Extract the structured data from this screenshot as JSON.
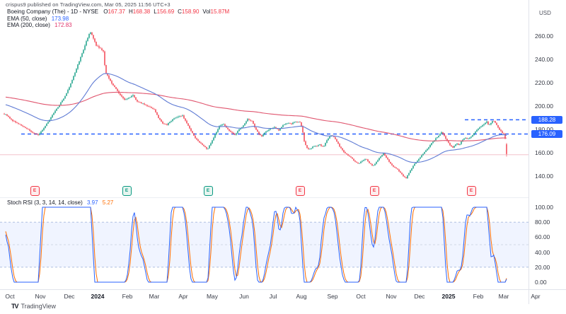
{
  "attribution": "crispus9 published on TradingView.com, Mar 05, 2025 11:56 UTC+3",
  "colors": {
    "up": "#089981",
    "down": "#f23645",
    "ema50": "#5f7bd4",
    "ema200": "#e0566f",
    "level_dashed": "#2962ff",
    "minor_line": "#f0b9c4",
    "stoch_k": "#2962ff",
    "stoch_d": "#ff6d00",
    "band_fill": "rgba(41,98,255,0.07)",
    "band_edge": "#a5b8dd",
    "band_mid": "#c6cede",
    "badge_bg": "#2962ff"
  },
  "main_legend": {
    "symbol": "Boeing Company (The)",
    "separator": "-",
    "interval": "1D",
    "exchange": "NYSE",
    "ohlc": [
      {
        "k": "O",
        "v": "167.37"
      },
      {
        "k": "H",
        "v": "168.38"
      },
      {
        "k": "L",
        "v": "156.69"
      },
      {
        "k": "C",
        "v": "158.90"
      },
      {
        "k": "Vol",
        "v": "15.87M"
      }
    ],
    "indicators": [
      {
        "label": "EMA (50, close)",
        "value": "173.98",
        "color": "#2962ff"
      },
      {
        "label": "EMA (200, close)",
        "value": "172.83",
        "color": "#e0356b"
      }
    ]
  },
  "price_axis": {
    "currency": "USD",
    "ticks": [
      "260.00",
      "240.00",
      "220.00",
      "200.00",
      "180.00",
      "160.00",
      "140.00"
    ],
    "badges": [
      {
        "text": "188.28",
        "price": 188.28
      },
      {
        "text": "176.09",
        "price": 176.09
      }
    ]
  },
  "stoch_axis": [
    "100.00",
    "80.00",
    "60.00",
    "40.00",
    "20.00",
    "0.00"
  ],
  "stoch_legend": {
    "title": "Stoch RSI",
    "params": "(3, 3, 14, 14, close)",
    "k_value": "3.97",
    "d_value": "5.27"
  },
  "time_axis": [
    {
      "label": "Oct",
      "x": 14
    },
    {
      "label": "Nov",
      "x": 57
    },
    {
      "label": "Dec",
      "x": 98
    },
    {
      "label": "2024",
      "x": 138,
      "bold": true
    },
    {
      "label": "Feb",
      "x": 180
    },
    {
      "label": "Mar",
      "x": 218
    },
    {
      "label": "Apr",
      "x": 259
    },
    {
      "label": "May",
      "x": 300
    },
    {
      "label": "Jun",
      "x": 345
    },
    {
      "label": "Jul",
      "x": 386
    },
    {
      "label": "Aug",
      "x": 426
    },
    {
      "label": "Sep",
      "x": 470
    },
    {
      "label": "Oct",
      "x": 510
    },
    {
      "label": "Nov",
      "x": 553
    },
    {
      "label": "Dec",
      "x": 593
    },
    {
      "label": "2025",
      "x": 634,
      "bold": true
    },
    {
      "label": "Feb",
      "x": 676
    },
    {
      "label": "Mar",
      "x": 712
    },
    {
      "label": "Apr",
      "x": 757
    }
  ],
  "earnings_markers": {
    "letter": "E",
    "items": [
      {
        "x": 48,
        "type": "red"
      },
      {
        "x": 178,
        "type": "green"
      },
      {
        "x": 293,
        "type": "green"
      },
      {
        "x": 423,
        "type": "red"
      },
      {
        "x": 528,
        "type": "red"
      },
      {
        "x": 665,
        "type": "red"
      }
    ]
  },
  "footer": {
    "logo": "TV",
    "text": "TradingView"
  },
  "chart_data": {
    "type": "candlestick",
    "symbol": "Boeing Company (The)",
    "interval": "1D",
    "exchange": "NYSE",
    "x_range": [
      "Oct 2023",
      "Apr 2025"
    ],
    "y_range_usd": [
      133,
      272
    ],
    "last_candle": {
      "o": 167.37,
      "h": 168.38,
      "l": 156.69,
      "c": 158.9,
      "vol": "15.87M"
    },
    "overlays": [
      {
        "name": "EMA 50",
        "last": 173.98
      },
      {
        "name": "EMA 200",
        "last": 172.83
      }
    ],
    "levels": {
      "dashed_lines": [
        {
          "price": 188.28,
          "x_start": 657
        },
        {
          "price": 176.09,
          "x_start": 30
        }
      ],
      "minor_support": 158.3
    },
    "stoch_rsi": {
      "params": [
        3,
        3,
        14,
        14
      ],
      "k_last": 3.97,
      "d_last": 5.27,
      "bands": {
        "upper": 80,
        "middle": 50,
        "lower": 20
      }
    },
    "price_path_anchors": [
      [
        -352,
        196
      ],
      [
        -300,
        203
      ],
      [
        -255,
        211
      ],
      [
        -215,
        224
      ],
      [
        -185,
        234
      ],
      [
        -155,
        229
      ],
      [
        -125,
        221
      ],
      [
        -95,
        213
      ],
      [
        -65,
        207
      ],
      [
        -35,
        199
      ],
      [
        -12,
        194
      ],
      [
        8,
        193
      ],
      [
        18,
        188
      ],
      [
        28,
        184
      ],
      [
        38,
        180
      ],
      [
        48,
        177
      ],
      [
        54,
        176.3
      ],
      [
        62,
        182
      ],
      [
        72,
        190
      ],
      [
        82,
        199
      ],
      [
        92,
        209
      ],
      [
        102,
        223
      ],
      [
        110,
        235
      ],
      [
        118,
        247
      ],
      [
        127,
        263
      ],
      [
        131,
        259
      ],
      [
        136,
        252
      ],
      [
        142,
        250
      ],
      [
        146,
        247
      ],
      [
        149,
        229
      ],
      [
        153,
        224
      ],
      [
        158,
        218
      ],
      [
        164,
        214
      ],
      [
        170,
        209
      ],
      [
        176,
        206
      ],
      [
        182,
        208
      ],
      [
        188,
        210
      ],
      [
        194,
        204
      ],
      [
        200,
        202
      ],
      [
        208,
        200
      ],
      [
        218,
        198
      ],
      [
        224,
        191
      ],
      [
        230,
        186
      ],
      [
        236,
        184
      ],
      [
        244,
        188
      ],
      [
        252,
        191
      ],
      [
        258,
        192
      ],
      [
        264,
        186
      ],
      [
        270,
        179
      ],
      [
        276,
        172
      ],
      [
        282,
        168
      ],
      [
        288,
        165
      ],
      [
        293,
        162
      ],
      [
        298,
        168
      ],
      [
        304,
        176
      ],
      [
        310,
        183
      ],
      [
        315,
        185
      ],
      [
        320,
        181
      ],
      [
        326,
        177
      ],
      [
        332,
        175
      ],
      [
        338,
        180
      ],
      [
        344,
        184
      ],
      [
        350,
        190
      ],
      [
        356,
        188
      ],
      [
        361,
        181
      ],
      [
        366,
        176
      ],
      [
        370,
        174
      ],
      [
        376,
        178
      ],
      [
        382,
        181
      ],
      [
        388,
        183
      ],
      [
        394,
        180
      ],
      [
        400,
        184
      ],
      [
        406,
        185
      ],
      [
        412,
        184
      ],
      [
        418,
        186
      ],
      [
        424,
        186
      ],
      [
        427,
        181
      ],
      [
        430,
        170
      ],
      [
        433,
        165
      ],
      [
        437,
        163
      ],
      [
        442,
        165
      ],
      [
        447,
        165
      ],
      [
        452,
        166
      ],
      [
        457,
        164
      ],
      [
        462,
        170
      ],
      [
        467,
        175
      ],
      [
        472,
        174
      ],
      [
        477,
        169
      ],
      [
        482,
        164
      ],
      [
        487,
        160
      ],
      [
        492,
        157
      ],
      [
        497,
        155
      ],
      [
        502,
        152
      ],
      [
        507,
        151
      ],
      [
        512,
        154
      ],
      [
        517,
        156
      ],
      [
        522,
        152
      ],
      [
        527,
        149
      ],
      [
        532,
        152
      ],
      [
        537,
        156
      ],
      [
        542,
        159
      ],
      [
        547,
        155
      ],
      [
        552,
        151
      ],
      [
        557,
        148
      ],
      [
        562,
        146
      ],
      [
        567,
        142
      ],
      [
        571,
        139
      ],
      [
        574,
        137.8
      ],
      [
        578,
        142
      ],
      [
        582,
        146
      ],
      [
        586,
        150
      ],
      [
        590,
        153
      ],
      [
        595,
        157
      ],
      [
        600,
        161
      ],
      [
        605,
        164
      ],
      [
        610,
        168
      ],
      [
        615,
        171
      ],
      [
        620,
        174
      ],
      [
        624,
        177
      ],
      [
        628,
        174
      ],
      [
        632,
        170
      ],
      [
        636,
        167
      ],
      [
        640,
        165
      ],
      [
        645,
        169
      ],
      [
        649,
        167
      ],
      [
        653,
        171
      ],
      [
        657,
        173
      ],
      [
        661,
        171
      ],
      [
        665,
        173
      ],
      [
        669,
        176
      ],
      [
        673,
        179
      ],
      [
        677,
        182
      ],
      [
        681,
        184
      ],
      [
        685,
        186
      ],
      [
        688,
        187.5
      ],
      [
        691,
        184
      ],
      [
        694,
        186
      ],
      [
        697,
        188
      ],
      [
        700,
        185
      ],
      [
        703,
        182
      ],
      [
        706,
        179
      ],
      [
        709,
        177
      ],
      [
        712,
        175.5
      ],
      [
        714,
        172
      ],
      [
        715,
        170
      ],
      [
        717,
        159
      ]
    ]
  }
}
